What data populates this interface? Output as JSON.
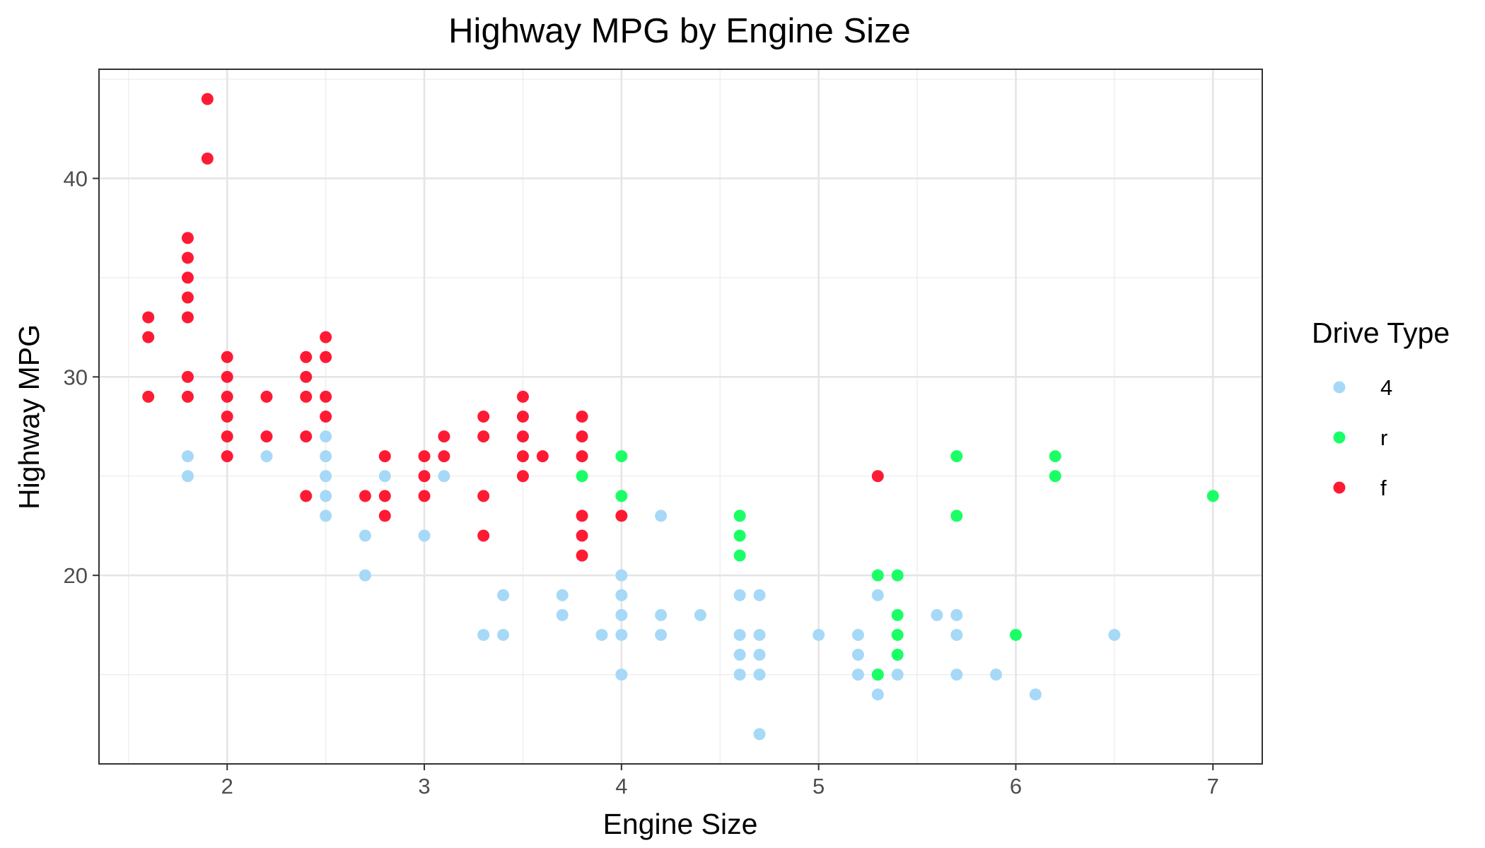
{
  "chart_data": {
    "type": "scatter",
    "title": "Highway MPG by Engine Size",
    "xlabel": "Engine Size",
    "ylabel": "Highway MPG",
    "xlim": [
      1.35,
      7.25
    ],
    "ylim": [
      10.5,
      45.5
    ],
    "x_ticks": [
      2,
      3,
      4,
      5,
      6,
      7
    ],
    "y_ticks": [
      20,
      30,
      40
    ],
    "grid": true,
    "legend": {
      "title": "Drive Type",
      "position": "right",
      "entries": [
        {
          "label": "4",
          "color": "#a6d9f7"
        },
        {
          "label": "r",
          "color": "#1aff66"
        },
        {
          "label": "f",
          "color": "#ff1a33"
        }
      ]
    },
    "series": [
      {
        "name": "4",
        "color": "#a6d9f7",
        "points": [
          [
            1.8,
            26
          ],
          [
            1.8,
            25
          ],
          [
            2.2,
            26
          ],
          [
            2.5,
            27
          ],
          [
            2.5,
            26
          ],
          [
            2.5,
            25
          ],
          [
            2.5,
            24
          ],
          [
            2.5,
            23
          ],
          [
            2.7,
            22
          ],
          [
            2.7,
            20
          ],
          [
            2.8,
            25
          ],
          [
            3.0,
            22
          ],
          [
            3.1,
            25
          ],
          [
            3.3,
            17
          ],
          [
            3.4,
            19
          ],
          [
            3.4,
            17
          ],
          [
            3.7,
            19
          ],
          [
            3.7,
            18
          ],
          [
            3.9,
            17
          ],
          [
            4.0,
            20
          ],
          [
            4.0,
            19
          ],
          [
            4.0,
            18
          ],
          [
            4.0,
            17
          ],
          [
            4.0,
            15
          ],
          [
            4.2,
            23
          ],
          [
            4.2,
            18
          ],
          [
            4.2,
            17
          ],
          [
            4.4,
            18
          ],
          [
            4.6,
            19
          ],
          [
            4.6,
            17
          ],
          [
            4.6,
            16
          ],
          [
            4.6,
            15
          ],
          [
            4.7,
            19
          ],
          [
            4.7,
            17
          ],
          [
            4.7,
            16
          ],
          [
            4.7,
            15
          ],
          [
            4.7,
            12
          ],
          [
            5.0,
            17
          ],
          [
            5.2,
            17
          ],
          [
            5.2,
            16
          ],
          [
            5.2,
            15
          ],
          [
            5.3,
            19
          ],
          [
            5.3,
            15
          ],
          [
            5.3,
            14
          ],
          [
            5.4,
            15
          ],
          [
            5.6,
            18
          ],
          [
            5.7,
            18
          ],
          [
            5.7,
            17
          ],
          [
            5.7,
            15
          ],
          [
            5.9,
            15
          ],
          [
            6.1,
            14
          ],
          [
            6.5,
            17
          ]
        ]
      },
      {
        "name": "r",
        "color": "#1aff66",
        "points": [
          [
            3.8,
            25
          ],
          [
            4.0,
            26
          ],
          [
            4.0,
            24
          ],
          [
            4.6,
            23
          ],
          [
            4.6,
            22
          ],
          [
            4.6,
            21
          ],
          [
            5.3,
            20
          ],
          [
            5.3,
            15
          ],
          [
            5.4,
            20
          ],
          [
            5.4,
            18
          ],
          [
            5.4,
            17
          ],
          [
            5.4,
            16
          ],
          [
            5.7,
            26
          ],
          [
            5.7,
            23
          ],
          [
            6.0,
            17
          ],
          [
            6.2,
            26
          ],
          [
            6.2,
            25
          ],
          [
            7.0,
            24
          ]
        ]
      },
      {
        "name": "f",
        "color": "#ff1a33",
        "points": [
          [
            1.6,
            33
          ],
          [
            1.6,
            32
          ],
          [
            1.6,
            29
          ],
          [
            1.8,
            37
          ],
          [
            1.8,
            36
          ],
          [
            1.8,
            35
          ],
          [
            1.8,
            34
          ],
          [
            1.8,
            33
          ],
          [
            1.8,
            30
          ],
          [
            1.8,
            29
          ],
          [
            1.9,
            44
          ],
          [
            1.9,
            41
          ],
          [
            2.0,
            31
          ],
          [
            2.0,
            30
          ],
          [
            2.0,
            29
          ],
          [
            2.0,
            28
          ],
          [
            2.0,
            27
          ],
          [
            2.0,
            26
          ],
          [
            2.2,
            29
          ],
          [
            2.2,
            27
          ],
          [
            2.4,
            31
          ],
          [
            2.4,
            30
          ],
          [
            2.4,
            29
          ],
          [
            2.4,
            27
          ],
          [
            2.4,
            24
          ],
          [
            2.5,
            32
          ],
          [
            2.5,
            31
          ],
          [
            2.5,
            29
          ],
          [
            2.5,
            28
          ],
          [
            2.7,
            24
          ],
          [
            2.8,
            26
          ],
          [
            2.8,
            24
          ],
          [
            2.8,
            23
          ],
          [
            3.0,
            26
          ],
          [
            3.0,
            25
          ],
          [
            3.0,
            24
          ],
          [
            3.1,
            27
          ],
          [
            3.1,
            26
          ],
          [
            3.3,
            28
          ],
          [
            3.3,
            27
          ],
          [
            3.3,
            24
          ],
          [
            3.3,
            22
          ],
          [
            3.5,
            29
          ],
          [
            3.5,
            28
          ],
          [
            3.5,
            27
          ],
          [
            3.5,
            26
          ],
          [
            3.5,
            25
          ],
          [
            3.6,
            26
          ],
          [
            3.8,
            28
          ],
          [
            3.8,
            27
          ],
          [
            3.8,
            26
          ],
          [
            3.8,
            23
          ],
          [
            3.8,
            22
          ],
          [
            3.8,
            21
          ],
          [
            4.0,
            23
          ],
          [
            5.3,
            25
          ]
        ]
      }
    ]
  }
}
